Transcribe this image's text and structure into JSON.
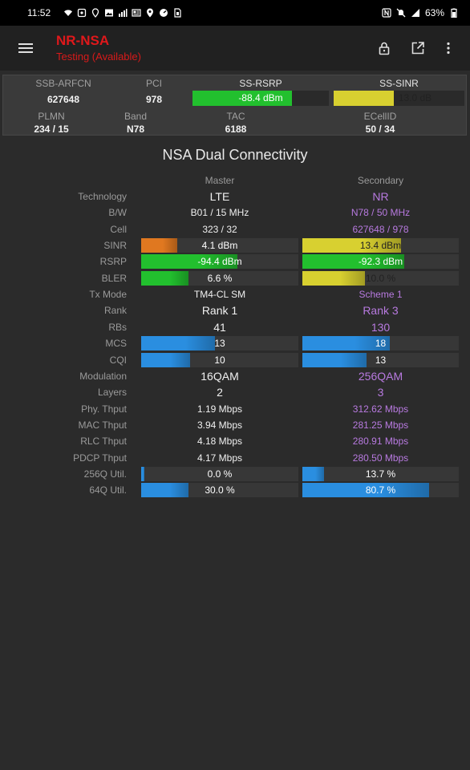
{
  "status_bar": {
    "time": "11:52",
    "battery": "63%",
    "left_icons": [
      "wifi-icon",
      "nfc-icon",
      "location-icon",
      "image-icon",
      "signal-bars-icon",
      "news-icon",
      "map-pin-icon",
      "speedtest-icon",
      "sim-icon"
    ],
    "right_icons": [
      "nfc-n-icon",
      "mute-icon",
      "signal-5g-icon",
      "battery-icon"
    ]
  },
  "app_bar": {
    "title": "NR-NSA",
    "subtitle": "Testing (Available)"
  },
  "top_info": {
    "ssb_arfcn": {
      "label": "SSB-ARFCN",
      "value": "627648"
    },
    "pci": {
      "label": "PCI",
      "value": "978"
    },
    "ss_rsrp": {
      "label": "SS-RSRP",
      "value": "-88.4 dBm",
      "level": 0.73,
      "color": "#22c02e"
    },
    "ss_sinr": {
      "label": "SS-SINR",
      "value": "13.0 dB",
      "level": 0.46,
      "color": "#d8d030"
    },
    "plmn": {
      "label": "PLMN",
      "value": "234 / 15"
    },
    "band": {
      "label": "Band",
      "value": "N78"
    },
    "tac": {
      "label": "TAC",
      "value": "6188"
    },
    "ecellid": {
      "label": "ECellID",
      "value": "50 / 34"
    }
  },
  "section": {
    "title": "NSA Dual Connectivity",
    "master_header": "Master",
    "secondary_header": "Secondary"
  },
  "rows": [
    {
      "label": "Technology",
      "master": "LTE",
      "secondary": "NR",
      "big": true
    },
    {
      "label": "B/W",
      "master": "B01 / 15 MHz",
      "secondary": "N78 / 50 MHz"
    },
    {
      "label": "Cell",
      "master": "323 / 32",
      "secondary": "627648 / 978"
    },
    {
      "label": "SINR",
      "master": "4.1 dBm",
      "secondary": "13.4 dBm",
      "bar": true,
      "m_level": 0.23,
      "m_color": "#e07820",
      "s_level": 0.63,
      "s_color": "#d8d030"
    },
    {
      "label": "RSRP",
      "master": "-94.4 dBm",
      "secondary": "-92.3 dBm",
      "bar": true,
      "m_level": 0.61,
      "m_color": "#22c02e",
      "s_level": 0.65,
      "s_color": "#22c02e"
    },
    {
      "label": "BLER",
      "master": "6.6 %",
      "secondary": "10.0 %",
      "bar": true,
      "m_level": 0.3,
      "m_color": "#22c02e",
      "s_level": 0.4,
      "s_color": "#d8d030"
    },
    {
      "label": "Tx Mode",
      "master": "TM4-CL SM",
      "secondary": "Scheme 1"
    },
    {
      "label": "Rank",
      "master": "Rank 1",
      "secondary": "Rank 3",
      "big": true
    },
    {
      "label": "RBs",
      "master": "41",
      "secondary": "130",
      "big": true
    },
    {
      "label": "MCS",
      "master": "13",
      "secondary": "18",
      "bar": true,
      "m_level": 0.47,
      "m_color": "#2a8ee0",
      "s_level": 0.56,
      "s_color": "#2a8ee0"
    },
    {
      "label": "CQI",
      "master": "10",
      "secondary": "13",
      "bar": true,
      "m_level": 0.31,
      "m_color": "#2a8ee0",
      "s_level": 0.41,
      "s_color": "#2a8ee0"
    },
    {
      "label": "Modulation",
      "master": "16QAM",
      "secondary": "256QAM",
      "big": true
    },
    {
      "label": "Layers",
      "master": "2",
      "secondary": "3",
      "big": true
    },
    {
      "label": "Phy. Thput",
      "master": "1.19 Mbps",
      "secondary": "312.62 Mbps"
    },
    {
      "label": "MAC Thput",
      "master": "3.94 Mbps",
      "secondary": "281.25 Mbps"
    },
    {
      "label": "RLC Thput",
      "master": "4.18 Mbps",
      "secondary": "280.91 Mbps"
    },
    {
      "label": "PDCP Thput",
      "master": "4.17 Mbps",
      "secondary": "280.50 Mbps"
    },
    {
      "label": "256Q Util.",
      "master": "0.0 %",
      "secondary": "13.7 %",
      "bar": true,
      "m_level": 0.02,
      "m_color": "#2a8ee0",
      "s_level": 0.14,
      "s_color": "#2a8ee0"
    },
    {
      "label": "64Q Util.",
      "master": "30.0 %",
      "secondary": "80.7 %",
      "bar": true,
      "m_level": 0.3,
      "m_color": "#2a8ee0",
      "s_level": 0.81,
      "s_color": "#2a8ee0"
    }
  ]
}
